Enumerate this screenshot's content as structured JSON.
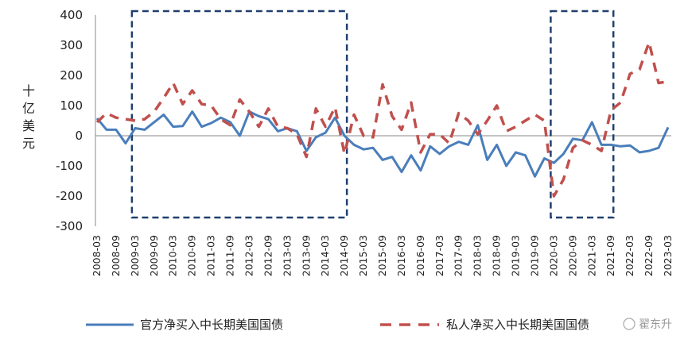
{
  "chart_data": {
    "type": "line",
    "ylabel": "十亿美元",
    "ylim": [
      -300,
      400
    ],
    "yticks": [
      400,
      300,
      200,
      100,
      0,
      -100,
      -200,
      -300
    ],
    "x": [
      "2008-03",
      "2008-06",
      "2008-09",
      "2008-12",
      "2009-03",
      "2009-06",
      "2009-09",
      "2009-12",
      "2010-03",
      "2010-06",
      "2010-09",
      "2010-12",
      "2011-03",
      "2011-06",
      "2011-09",
      "2011-12",
      "2012-03",
      "2012-06",
      "2012-09",
      "2012-12",
      "2013-03",
      "2013-06",
      "2013-09",
      "2013-12",
      "2014-03",
      "2014-06",
      "2014-09",
      "2014-12",
      "2015-03",
      "2015-06",
      "2015-09",
      "2015-12",
      "2016-03",
      "2016-06",
      "2016-09",
      "2016-12",
      "2017-03",
      "2017-06",
      "2017-09",
      "2017-12",
      "2018-03",
      "2018-06",
      "2018-09",
      "2018-12",
      "2019-03",
      "2019-06",
      "2019-09",
      "2019-12",
      "2020-03",
      "2020-06",
      "2020-09",
      "2020-12",
      "2021-03",
      "2021-06",
      "2021-09",
      "2021-12",
      "2022-03",
      "2022-06",
      "2022-09",
      "2022-12",
      "2023-03"
    ],
    "xtick_labels": [
      "2008-03",
      "2008-09",
      "2009-03",
      "2009-09",
      "2010-03",
      "2010-09",
      "2011-03",
      "2011-09",
      "2012-03",
      "2012-09",
      "2013-03",
      "2013-09",
      "2014-03",
      "2014-09",
      "2015-03",
      "2015-09",
      "2016-03",
      "2016-09",
      "2017-03",
      "2017-09",
      "2018-03",
      "2018-09",
      "2019-03",
      "2019-09",
      "2020-03",
      "2020-09",
      "2021-03",
      "2021-09",
      "2022-03",
      "2022-09",
      "2023-03"
    ],
    "series": [
      {
        "name": "官方净买入中长期美国国债",
        "style": "solid",
        "color": "#4a7ebb",
        "values": [
          58,
          20,
          20,
          -25,
          25,
          20,
          45,
          70,
          30,
          32,
          80,
          30,
          42,
          60,
          45,
          0,
          80,
          65,
          55,
          15,
          25,
          15,
          -50,
          -5,
          10,
          60,
          0,
          -30,
          -45,
          -40,
          -80,
          -70,
          -120,
          -65,
          -115,
          -35,
          -60,
          -35,
          -20,
          -30,
          35,
          -80,
          -30,
          -100,
          -55,
          -65,
          -135,
          -75,
          -90,
          -60,
          -10,
          -15,
          45,
          -30,
          -30,
          -35,
          -32,
          -55,
          -50,
          -40,
          28
        ]
      },
      {
        "name": "私人净买入中长期美国国债",
        "style": "dashed",
        "color": "#c0504d",
        "values": [
          45,
          75,
          60,
          55,
          50,
          55,
          80,
          125,
          175,
          105,
          150,
          105,
          100,
          55,
          35,
          120,
          80,
          30,
          90,
          30,
          25,
          5,
          -70,
          90,
          30,
          95,
          -60,
          70,
          0,
          -5,
          170,
          65,
          20,
          110,
          -55,
          5,
          5,
          -25,
          75,
          50,
          5,
          50,
          100,
          15,
          30,
          50,
          70,
          50,
          -200,
          -145,
          -40,
          -15,
          -30,
          -50,
          85,
          110,
          205,
          220,
          310,
          175,
          180
        ]
      }
    ],
    "annotations": [
      "dashed-box 2009-03 to 2014-09",
      "dashed-box 2020-03 to 2021-09"
    ],
    "grid": false,
    "legend": "bottom"
  },
  "watermark": {
    "text": "翟东升"
  },
  "colors": {
    "official": "#4a7ebb",
    "private": "#c0504d",
    "box": "#1f3f6f",
    "axis": "#888888"
  }
}
